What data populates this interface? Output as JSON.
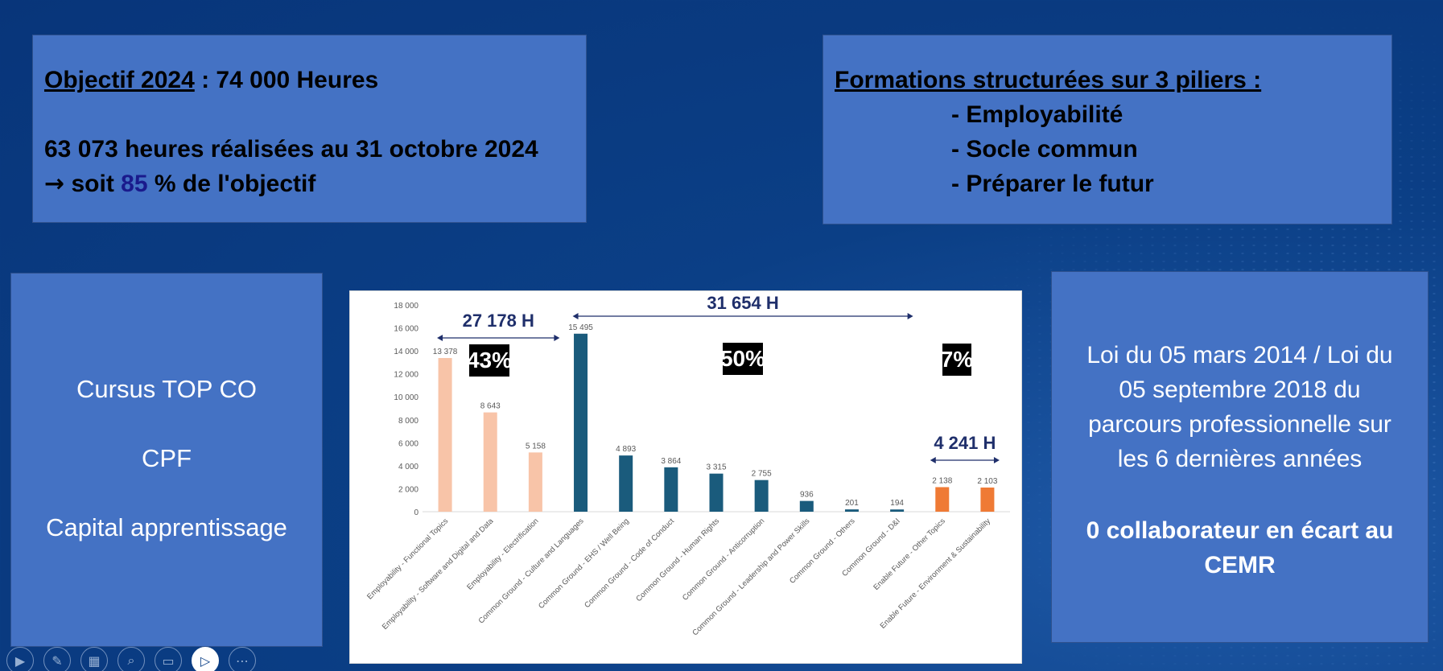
{
  "objective": {
    "title_underlined": "Objectif 2024",
    "title_rest": " : 74 000 Heures",
    "line2": "63 073 heures réalisées au 31 octobre 2024",
    "line3_prefix": " soit ",
    "line3_value": "85",
    "line3_suffix": " % de l'objectif"
  },
  "formations": {
    "title": "Formations structurées sur 3 piliers :",
    "pillars": [
      "- Employabilité",
      "- Socle commun",
      "- Préparer le futur"
    ]
  },
  "cursus": {
    "items": [
      "Cursus TOP CO",
      "CPF",
      "Capital apprentissage"
    ]
  },
  "loi": {
    "lines": [
      "Loi du 05 mars 2014 /  Loi du",
      "05 septembre 2018 du",
      "parcours professionnelle sur",
      "les 6 dernières années"
    ],
    "bold_lines": [
      "0 collaborateur en écart au",
      "CEMR"
    ]
  },
  "chart_data": {
    "type": "bar",
    "categories": [
      "Employability - Functional Topics",
      "Employability - Software and Digital and Data",
      "Employability - Electrification",
      "Common Ground - Culture and Languages",
      "Common Ground - EHS / Well Being",
      "Common Ground - Code of Conduct",
      "Common Ground - Human Rights",
      "Common Ground - Anticorruption",
      "Common Ground - Leadership and Power Skills",
      "Common Ground - Others",
      "Common Ground - D&I",
      "Enable Future - Other Topics",
      "Enable Future - Environment & Sustainability"
    ],
    "values": [
      13378,
      8643,
      5158,
      15495,
      4893,
      3864,
      3315,
      2755,
      936,
      201,
      194,
      2138,
      2103
    ],
    "value_labels": [
      "13 378",
      "8 643",
      "5 158",
      "15 495",
      "4 893",
      "3 864",
      "3 315",
      "2 755",
      "936",
      "201",
      "194",
      "2 138",
      "2 103"
    ],
    "colors": [
      "#f8c4a8",
      "#f8c4a8",
      "#f8c4a8",
      "#1a5b7c",
      "#1a5b7c",
      "#1a5b7c",
      "#1a5b7c",
      "#1a5b7c",
      "#1a5b7c",
      "#1a5b7c",
      "#1a5b7c",
      "#ef7a35",
      "#ef7a35"
    ],
    "ylim": [
      0,
      18000
    ],
    "yticks": [
      "0",
      "2 000",
      "4 000",
      "6 000",
      "8 000",
      "10 000",
      "12 000",
      "14 000",
      "16 000",
      "18 000"
    ],
    "groups": [
      {
        "label": "27 178 H",
        "percent": "43%",
        "from": 0,
        "to": 2
      },
      {
        "label": "31 654 H",
        "percent": "50%",
        "from": 3,
        "to": 10
      },
      {
        "label": "4 241 H",
        "percent": "7%",
        "from": 11,
        "to": 12
      }
    ],
    "arrow_color": "#1f2f6b",
    "title": "",
    "xlabel": "",
    "ylabel": ""
  },
  "toolbar": {
    "buttons": [
      "play-icon",
      "pen-icon",
      "slides-icon",
      "zoom-icon",
      "subtitles-icon",
      "camera-icon",
      "more-icon"
    ]
  }
}
